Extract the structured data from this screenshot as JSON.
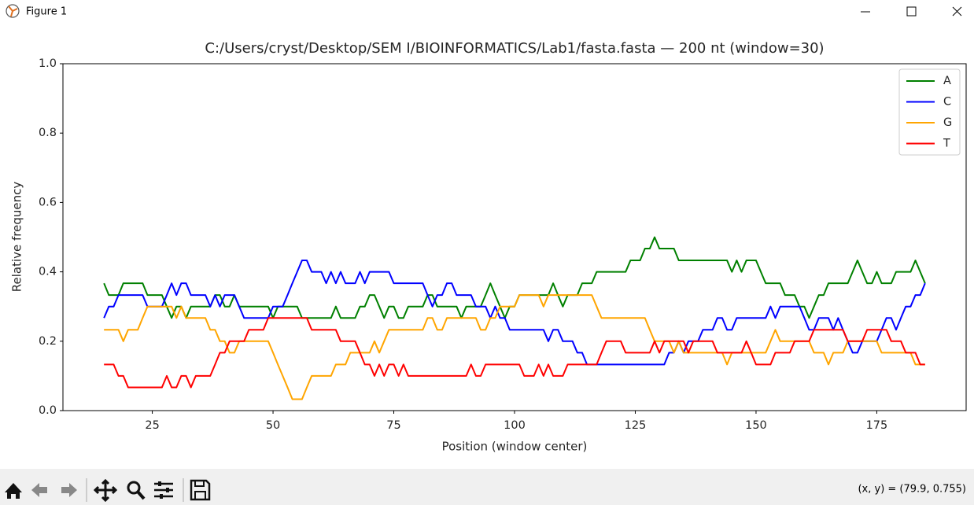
{
  "window": {
    "title": "Figure 1"
  },
  "toolbar": {
    "status": "(x, y) = (79.9, 0.755)"
  },
  "chart_data": {
    "type": "line",
    "title": "C:/Users/cryst/Desktop/SEM I/BIOINFORMATICS/Lab1/fasta.fasta — 200 nt (window=30)",
    "x_label": "Position (window center)",
    "y_label": "Relative frequency",
    "xlim": [
      6.5,
      193.5
    ],
    "xticks": [
      25,
      50,
      75,
      100,
      125,
      150,
      175
    ],
    "ylim": [
      0,
      1
    ],
    "yticks": [
      {
        "value": 0,
        "label": "0.0"
      },
      0.2,
      0.4,
      0.6,
      0.8,
      {
        "value": 1,
        "label": "1.0"
      }
    ],
    "legend": "upper right",
    "grid": false,
    "x": [
      15,
      16,
      17,
      18,
      19,
      20,
      21,
      22,
      23,
      24,
      25,
      26,
      27,
      28,
      29,
      30,
      31,
      32,
      33,
      34,
      35,
      36,
      37,
      38,
      39,
      40,
      41,
      42,
      43,
      44,
      45,
      46,
      47,
      48,
      49,
      50,
      51,
      52,
      53,
      54,
      55,
      56,
      57,
      58,
      59,
      60,
      61,
      62,
      63,
      64,
      65,
      66,
      67,
      68,
      69,
      70,
      71,
      72,
      73,
      74,
      75,
      76,
      77,
      78,
      79,
      80,
      81,
      82,
      83,
      84,
      85,
      86,
      87,
      88,
      89,
      90,
      91,
      92,
      93,
      94,
      95,
      96,
      97,
      98,
      99,
      100,
      101,
      102,
      103,
      104,
      105,
      106,
      107,
      108,
      109,
      110,
      111,
      112,
      113,
      114,
      115,
      116,
      117,
      118,
      119,
      120,
      121,
      122,
      123,
      124,
      125,
      126,
      127,
      128,
      129,
      130,
      131,
      132,
      133,
      134,
      135,
      136,
      137,
      138,
      139,
      140,
      141,
      142,
      143,
      144,
      145,
      146,
      147,
      148,
      149,
      150,
      151,
      152,
      153,
      154,
      155,
      156,
      157,
      158,
      159,
      160,
      161,
      162,
      163,
      164,
      165,
      166,
      167,
      168,
      169,
      170,
      171,
      172,
      173,
      174,
      175,
      176,
      177,
      178,
      179,
      180,
      181,
      182,
      183,
      184,
      185
    ],
    "series": [
      {
        "name": "A",
        "color": "#008000",
        "values": [
          0.367,
          0.333,
          0.333,
          0.333,
          0.367,
          0.367,
          0.367,
          0.367,
          0.367,
          0.333,
          0.333,
          0.333,
          0.333,
          0.3,
          0.267,
          0.3,
          0.3,
          0.267,
          0.3,
          0.3,
          0.3,
          0.3,
          0.3,
          0.333,
          0.333,
          0.3,
          0.3,
          0.333,
          0.3,
          0.3,
          0.3,
          0.3,
          0.3,
          0.3,
          0.3,
          0.267,
          0.3,
          0.3,
          0.3,
          0.3,
          0.3,
          0.267,
          0.267,
          0.267,
          0.267,
          0.267,
          0.267,
          0.267,
          0.3,
          0.267,
          0.267,
          0.267,
          0.267,
          0.3,
          0.3,
          0.333,
          0.333,
          0.3,
          0.267,
          0.3,
          0.3,
          0.267,
          0.267,
          0.3,
          0.3,
          0.3,
          0.3,
          0.333,
          0.333,
          0.3,
          0.3,
          0.3,
          0.3,
          0.3,
          0.267,
          0.3,
          0.3,
          0.3,
          0.3,
          0.333,
          0.367,
          0.333,
          0.3,
          0.267,
          0.3,
          0.3,
          0.333,
          0.333,
          0.333,
          0.333,
          0.333,
          0.333,
          0.333,
          0.367,
          0.333,
          0.3,
          0.333,
          0.333,
          0.333,
          0.367,
          0.367,
          0.367,
          0.4,
          0.4,
          0.4,
          0.4,
          0.4,
          0.4,
          0.4,
          0.433,
          0.433,
          0.433,
          0.467,
          0.467,
          0.5,
          0.467,
          0.467,
          0.467,
          0.467,
          0.433,
          0.433,
          0.433,
          0.433,
          0.433,
          0.433,
          0.433,
          0.433,
          0.433,
          0.433,
          0.433,
          0.4,
          0.433,
          0.4,
          0.433,
          0.433,
          0.433,
          0.4,
          0.367,
          0.367,
          0.367,
          0.367,
          0.333,
          0.333,
          0.333,
          0.3,
          0.3,
          0.267,
          0.3,
          0.333,
          0.333,
          0.367,
          0.367,
          0.367,
          0.367,
          0.367,
          0.4,
          0.433,
          0.4,
          0.367,
          0.367,
          0.4,
          0.367,
          0.367,
          0.367,
          0.4,
          0.4,
          0.4,
          0.4,
          0.433,
          0.4,
          0.367
        ]
      },
      {
        "name": "C",
        "color": "#0000ff",
        "values": [
          0.267,
          0.3,
          0.3,
          0.333,
          0.333,
          0.333,
          0.333,
          0.333,
          0.333,
          0.3,
          0.3,
          0.3,
          0.3,
          0.333,
          0.367,
          0.333,
          0.367,
          0.367,
          0.333,
          0.333,
          0.333,
          0.333,
          0.3,
          0.333,
          0.3,
          0.333,
          0.333,
          0.333,
          0.3,
          0.267,
          0.267,
          0.267,
          0.267,
          0.267,
          0.267,
          0.3,
          0.3,
          0.3,
          0.333,
          0.367,
          0.4,
          0.433,
          0.433,
          0.4,
          0.4,
          0.4,
          0.367,
          0.4,
          0.367,
          0.4,
          0.367,
          0.367,
          0.367,
          0.4,
          0.367,
          0.4,
          0.4,
          0.4,
          0.4,
          0.4,
          0.367,
          0.367,
          0.367,
          0.367,
          0.367,
          0.367,
          0.367,
          0.333,
          0.3,
          0.333,
          0.333,
          0.367,
          0.367,
          0.333,
          0.333,
          0.333,
          0.333,
          0.3,
          0.3,
          0.3,
          0.267,
          0.3,
          0.267,
          0.267,
          0.233,
          0.233,
          0.233,
          0.233,
          0.233,
          0.233,
          0.233,
          0.233,
          0.2,
          0.233,
          0.233,
          0.2,
          0.2,
          0.2,
          0.167,
          0.167,
          0.133,
          0.133,
          0.133,
          0.133,
          0.133,
          0.133,
          0.133,
          0.133,
          0.133,
          0.133,
          0.133,
          0.133,
          0.133,
          0.133,
          0.133,
          0.133,
          0.133,
          0.167,
          0.167,
          0.2,
          0.167,
          0.2,
          0.2,
          0.2,
          0.233,
          0.233,
          0.233,
          0.267,
          0.267,
          0.233,
          0.233,
          0.267,
          0.267,
          0.267,
          0.267,
          0.267,
          0.267,
          0.267,
          0.3,
          0.267,
          0.3,
          0.3,
          0.3,
          0.3,
          0.3,
          0.267,
          0.233,
          0.233,
          0.267,
          0.267,
          0.267,
          0.233,
          0.267,
          0.233,
          0.2,
          0.167,
          0.167,
          0.2,
          0.2,
          0.2,
          0.2,
          0.233,
          0.267,
          0.267,
          0.233,
          0.267,
          0.3,
          0.3,
          0.333,
          0.333,
          0.367
        ]
      },
      {
        "name": "G",
        "color": "#ffa500",
        "values": [
          0.233,
          0.233,
          0.233,
          0.233,
          0.2,
          0.233,
          0.233,
          0.233,
          0.267,
          0.3,
          0.3,
          0.3,
          0.3,
          0.3,
          0.3,
          0.267,
          0.3,
          0.267,
          0.267,
          0.267,
          0.267,
          0.267,
          0.233,
          0.233,
          0.2,
          0.2,
          0.167,
          0.167,
          0.2,
          0.2,
          0.2,
          0.2,
          0.2,
          0.2,
          0.2,
          0.167,
          0.133,
          0.1,
          0.067,
          0.033,
          0.033,
          0.033,
          0.067,
          0.1,
          0.1,
          0.1,
          0.1,
          0.1,
          0.133,
          0.133,
          0.133,
          0.167,
          0.167,
          0.167,
          0.167,
          0.167,
          0.2,
          0.167,
          0.2,
          0.233,
          0.233,
          0.233,
          0.233,
          0.233,
          0.233,
          0.233,
          0.233,
          0.267,
          0.267,
          0.233,
          0.233,
          0.267,
          0.267,
          0.267,
          0.267,
          0.267,
          0.267,
          0.267,
          0.233,
          0.233,
          0.267,
          0.267,
          0.3,
          0.3,
          0.3,
          0.3,
          0.333,
          0.333,
          0.333,
          0.333,
          0.333,
          0.3,
          0.333,
          0.333,
          0.333,
          0.333,
          0.333,
          0.333,
          0.333,
          0.333,
          0.333,
          0.333,
          0.3,
          0.267,
          0.267,
          0.267,
          0.267,
          0.267,
          0.267,
          0.267,
          0.267,
          0.267,
          0.267,
          0.233,
          0.2,
          0.2,
          0.2,
          0.2,
          0.167,
          0.2,
          0.167,
          0.167,
          0.167,
          0.167,
          0.167,
          0.167,
          0.167,
          0.167,
          0.167,
          0.133,
          0.167,
          0.167,
          0.167,
          0.167,
          0.167,
          0.167,
          0.167,
          0.167,
          0.2,
          0.233,
          0.2,
          0.2,
          0.2,
          0.2,
          0.2,
          0.2,
          0.2,
          0.167,
          0.167,
          0.167,
          0.133,
          0.167,
          0.167,
          0.167,
          0.2,
          0.2,
          0.2,
          0.2,
          0.2,
          0.2,
          0.2,
          0.167,
          0.167,
          0.167,
          0.167,
          0.167,
          0.167,
          0.167,
          0.133,
          0.133,
          0.133
        ]
      },
      {
        "name": "T",
        "color": "#ff0000",
        "values": [
          0.133,
          0.133,
          0.133,
          0.1,
          0.1,
          0.067,
          0.067,
          0.067,
          0.067,
          0.067,
          0.067,
          0.067,
          0.067,
          0.1,
          0.067,
          0.067,
          0.1,
          0.1,
          0.067,
          0.1,
          0.1,
          0.1,
          0.1,
          0.133,
          0.167,
          0.167,
          0.2,
          0.2,
          0.2,
          0.2,
          0.233,
          0.233,
          0.233,
          0.233,
          0.267,
          0.267,
          0.267,
          0.267,
          0.267,
          0.267,
          0.267,
          0.267,
          0.267,
          0.233,
          0.233,
          0.233,
          0.233,
          0.233,
          0.233,
          0.2,
          0.2,
          0.2,
          0.2,
          0.167,
          0.133,
          0.133,
          0.1,
          0.133,
          0.1,
          0.133,
          0.133,
          0.1,
          0.133,
          0.1,
          0.1,
          0.1,
          0.1,
          0.1,
          0.1,
          0.1,
          0.1,
          0.1,
          0.1,
          0.1,
          0.1,
          0.1,
          0.133,
          0.1,
          0.1,
          0.133,
          0.133,
          0.133,
          0.133,
          0.133,
          0.133,
          0.133,
          0.133,
          0.1,
          0.1,
          0.1,
          0.133,
          0.1,
          0.133,
          0.1,
          0.1,
          0.1,
          0.133,
          0.133,
          0.133,
          0.133,
          0.133,
          0.133,
          0.133,
          0.167,
          0.2,
          0.2,
          0.2,
          0.2,
          0.167,
          0.167,
          0.167,
          0.167,
          0.167,
          0.167,
          0.2,
          0.167,
          0.2,
          0.2,
          0.2,
          0.2,
          0.2,
          0.167,
          0.2,
          0.2,
          0.2,
          0.2,
          0.2,
          0.167,
          0.167,
          0.167,
          0.167,
          0.167,
          0.167,
          0.2,
          0.167,
          0.133,
          0.133,
          0.133,
          0.133,
          0.167,
          0.167,
          0.167,
          0.167,
          0.2,
          0.2,
          0.2,
          0.2,
          0.233,
          0.233,
          0.233,
          0.233,
          0.233,
          0.233,
          0.233,
          0.2,
          0.2,
          0.2,
          0.2,
          0.233,
          0.233,
          0.233,
          0.233,
          0.233,
          0.2,
          0.2,
          0.2,
          0.167,
          0.167,
          0.167,
          0.133,
          0.133
        ]
      }
    ]
  }
}
